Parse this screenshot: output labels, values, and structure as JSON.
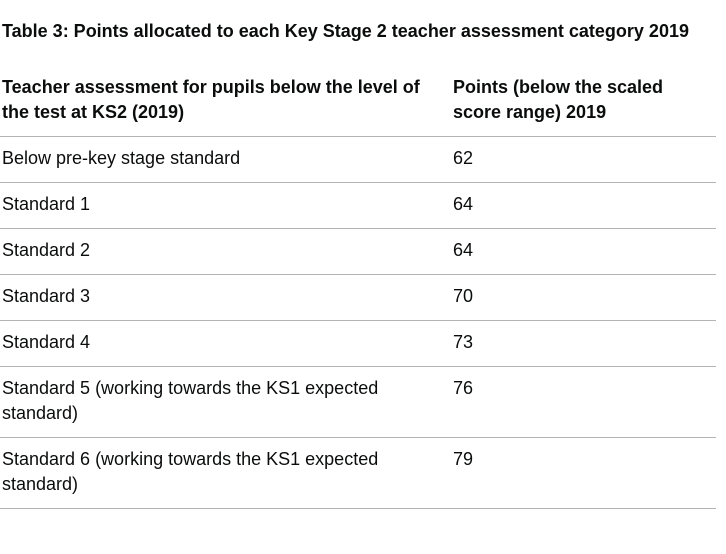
{
  "table": {
    "caption": "Table 3: Points allocated to each Key Stage 2 teacher assessment category 2019",
    "headers": [
      "Teacher assessment for pupils below the level of the test at KS2 (2019)",
      "Points (below the scaled score range) 2019"
    ],
    "rows": [
      {
        "category": "Below pre-key stage standard",
        "points": "62"
      },
      {
        "category": "Standard 1",
        "points": "64"
      },
      {
        "category": "Standard 2",
        "points": "64"
      },
      {
        "category": "Standard 3",
        "points": "70"
      },
      {
        "category": "Standard 4",
        "points": "73"
      },
      {
        "category": "Standard 5 (working towards the KS1 expected standard)",
        "points": "76"
      },
      {
        "category": "Standard 6 (working towards the KS1 expected standard)",
        "points": "79"
      }
    ]
  }
}
